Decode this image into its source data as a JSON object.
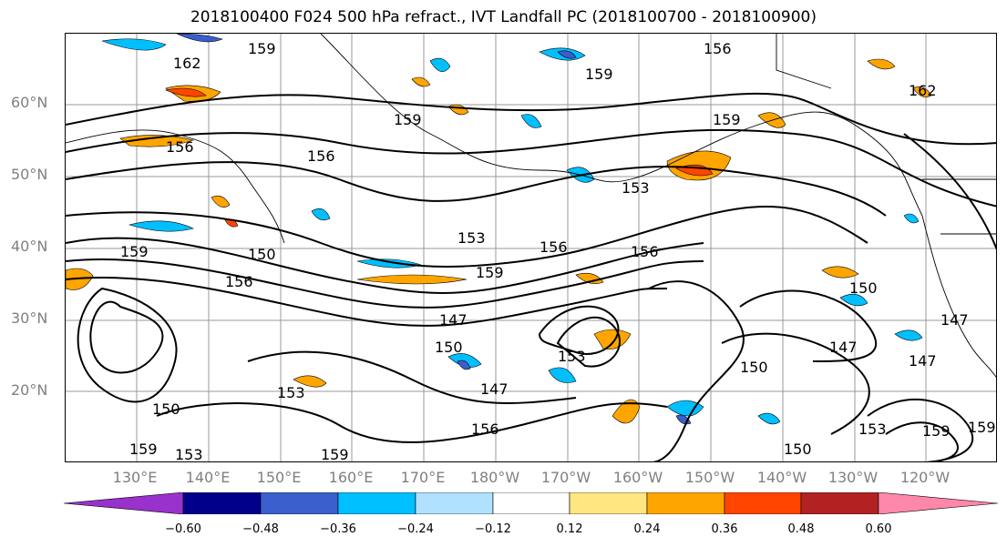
{
  "title": "2018100400 F024 500 hPa refract., IVT Landfall PC (2018100700 - 2018100900)",
  "lat_labels": [
    "60°N",
    "50°N",
    "40°N",
    "30°N",
    "20°N"
  ],
  "lon_labels": [
    "130°E",
    "140°E",
    "150°E",
    "160°E",
    "170°E",
    "180°W",
    "170°W",
    "160°W",
    "150°W",
    "140°W",
    "130°W",
    "120°W"
  ],
  "contour_labels": [
    "159",
    "162",
    "156",
    "159",
    "156",
    "162",
    "159",
    "156",
    "153",
    "156",
    "153",
    "159",
    "156",
    "150",
    "159",
    "156",
    "159",
    "150",
    "147",
    "150",
    "153",
    "147",
    "150",
    "147",
    "150",
    "147",
    "147",
    "156",
    "153",
    "159",
    "153",
    "153",
    "159",
    "150",
    "159",
    "159"
  ],
  "colorbar": {
    "ticks": [
      "−0.60",
      "−0.48",
      "−0.36",
      "−0.24",
      "−0.12",
      "0.12",
      "0.24",
      "0.36",
      "0.48",
      "0.60"
    ],
    "colors": [
      "#9932cc",
      "#00008b",
      "#3a5fcd",
      "#00bfff",
      "#b0e2ff",
      "#ffffff",
      "#ffe680",
      "#ffa500",
      "#ff4500",
      "#b22222",
      "#ff88aa"
    ]
  }
}
